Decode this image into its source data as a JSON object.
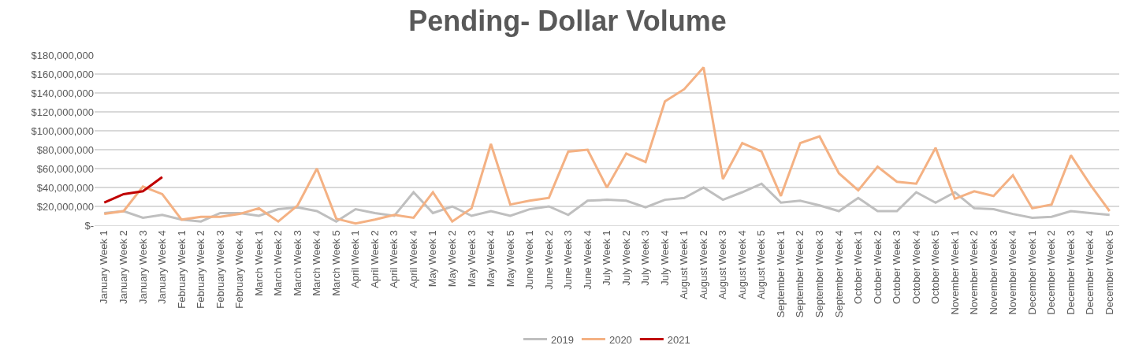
{
  "chart_data": {
    "type": "line",
    "title": "Pending- Dollar Volume",
    "categories": [
      "January Week 1",
      "January Week 2",
      "January Week 3",
      "January Week 4",
      "February Week 1",
      "February Week 2",
      "February Week 3",
      "February Week 4",
      "March Week 1",
      "March Week 2",
      "March Week 3",
      "March Week 4",
      "March Week 5",
      "April Week 1",
      "April Week 2",
      "April Week 3",
      "April Week 4",
      "May Week 1",
      "May Week 2",
      "May Week 3",
      "May Week 4",
      "May Week 5",
      "June Week 1",
      "June Week 2",
      "June Week 3",
      "June Week 4",
      "July Week 1",
      "July Week 2",
      "July Week 3",
      "July Week 4",
      "August Week 1",
      "August Week 2",
      "August Week 3",
      "August Week 4",
      "August Week 5",
      "September Week 1",
      "September Week 2",
      "September Week 3",
      "September Week 4",
      "October Week 1",
      "October Week 2",
      "October Week 3",
      "October Week 4",
      "October Week 5",
      "November Week 1",
      "November Week 2",
      "November Week 3",
      "November Week 4",
      "December Week 1",
      "December Week 2",
      "December Week 3",
      "December Week 4",
      "December Week 5"
    ],
    "series": [
      {
        "name": "2019",
        "color": "#bfbfbf",
        "values": [
          13000000,
          15000000,
          8000000,
          11000000,
          6000000,
          4000000,
          13000000,
          13000000,
          10000000,
          17000000,
          19000000,
          15000000,
          4000000,
          17000000,
          13000000,
          10000000,
          35000000,
          13000000,
          20000000,
          10000000,
          15000000,
          10000000,
          17000000,
          20000000,
          11000000,
          26000000,
          27000000,
          26000000,
          19000000,
          27000000,
          29000000,
          40000000,
          27000000,
          35000000,
          44000000,
          24000000,
          26000000,
          21000000,
          15000000,
          29000000,
          15000000,
          15000000,
          35000000,
          24000000,
          35000000,
          18000000,
          17000000,
          12000000,
          8000000,
          9000000,
          15000000,
          13000000,
          11000000
        ]
      },
      {
        "name": "2020",
        "color": "#f4b183",
        "values": [
          12000000,
          15000000,
          41000000,
          33000000,
          6000000,
          9000000,
          9000000,
          12000000,
          18000000,
          4000000,
          21000000,
          60000000,
          7000000,
          2000000,
          6000000,
          11000000,
          8000000,
          35000000,
          4000000,
          18000000,
          86000000,
          22000000,
          26000000,
          29000000,
          78000000,
          80000000,
          40000000,
          76000000,
          67000000,
          131000000,
          144000000,
          167000000,
          49000000,
          87000000,
          78000000,
          31000000,
          87000000,
          94000000,
          55000000,
          37000000,
          62000000,
          46000000,
          44000000,
          82000000,
          28000000,
          36000000,
          31000000,
          53000000,
          18000000,
          22000000,
          74000000,
          43000000,
          15000000
        ]
      },
      {
        "name": "2021",
        "color": "#c00000",
        "values": [
          24000000,
          33000000,
          36000000,
          51000000,
          null,
          null,
          null,
          null,
          null,
          null,
          null,
          null,
          null,
          null,
          null,
          null,
          null,
          null,
          null,
          null,
          null,
          null,
          null,
          null,
          null,
          null,
          null,
          null,
          null,
          null,
          null,
          null,
          null,
          null,
          null,
          null,
          null,
          null,
          null,
          null,
          null,
          null,
          null,
          null,
          null,
          null,
          null,
          null,
          null,
          null,
          null,
          null,
          null
        ]
      }
    ],
    "ylim": [
      0,
      180000000
    ],
    "yticks": [
      {
        "value": 0,
        "label": "$-"
      },
      {
        "value": 20000000,
        "label": "$20,000,000"
      },
      {
        "value": 40000000,
        "label": "$40,000,000"
      },
      {
        "value": 60000000,
        "label": "$60,000,000"
      },
      {
        "value": 80000000,
        "label": "$80,000,000"
      },
      {
        "value": 100000000,
        "label": "$100,000,000"
      },
      {
        "value": 120000000,
        "label": "$120,000,000"
      },
      {
        "value": 140000000,
        "label": "$140,000,000"
      },
      {
        "value": 160000000,
        "label": "$160,000,000"
      },
      {
        "value": 180000000,
        "label": "$180,000,000"
      }
    ],
    "grid": "y",
    "legend": "bottom",
    "marker": "none",
    "line_style": "solid"
  }
}
